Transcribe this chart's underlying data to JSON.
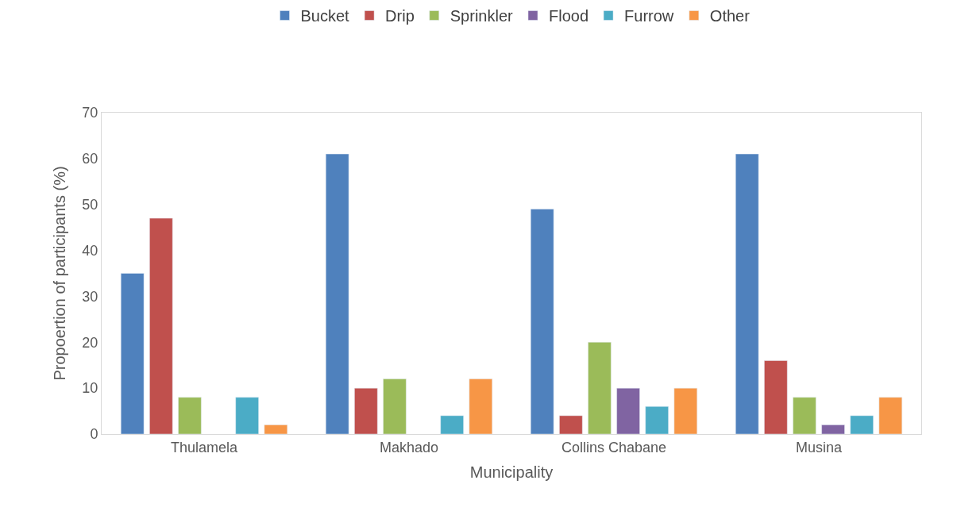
{
  "chart_data": {
    "type": "bar",
    "xlabel": "Municipality",
    "ylabel": "Propoertion of participants (%)",
    "categories": [
      "Thulamela",
      "Makhado",
      "Collins Chabane",
      "Musina"
    ],
    "series": [
      {
        "name": "Bucket",
        "color": "#4f81bd",
        "values": [
          35,
          61,
          49,
          61
        ]
      },
      {
        "name": "Drip",
        "color": "#c0504d",
        "values": [
          47,
          10,
          4,
          16
        ]
      },
      {
        "name": "Sprinkler",
        "color": "#9bbb59",
        "values": [
          8,
          12,
          20,
          8
        ]
      },
      {
        "name": "Flood",
        "color": "#8064a2",
        "values": [
          null,
          null,
          10,
          2
        ]
      },
      {
        "name": "Furrow",
        "color": "#4bacc6",
        "values": [
          8,
          4,
          6,
          4
        ]
      },
      {
        "name": "Other",
        "color": "#f79646",
        "values": [
          2,
          12,
          10,
          8
        ]
      }
    ],
    "ylim": [
      0,
      70
    ],
    "yticks": [
      0,
      10,
      20,
      30,
      40,
      50,
      60,
      70
    ],
    "grid": false,
    "legend": "top"
  }
}
